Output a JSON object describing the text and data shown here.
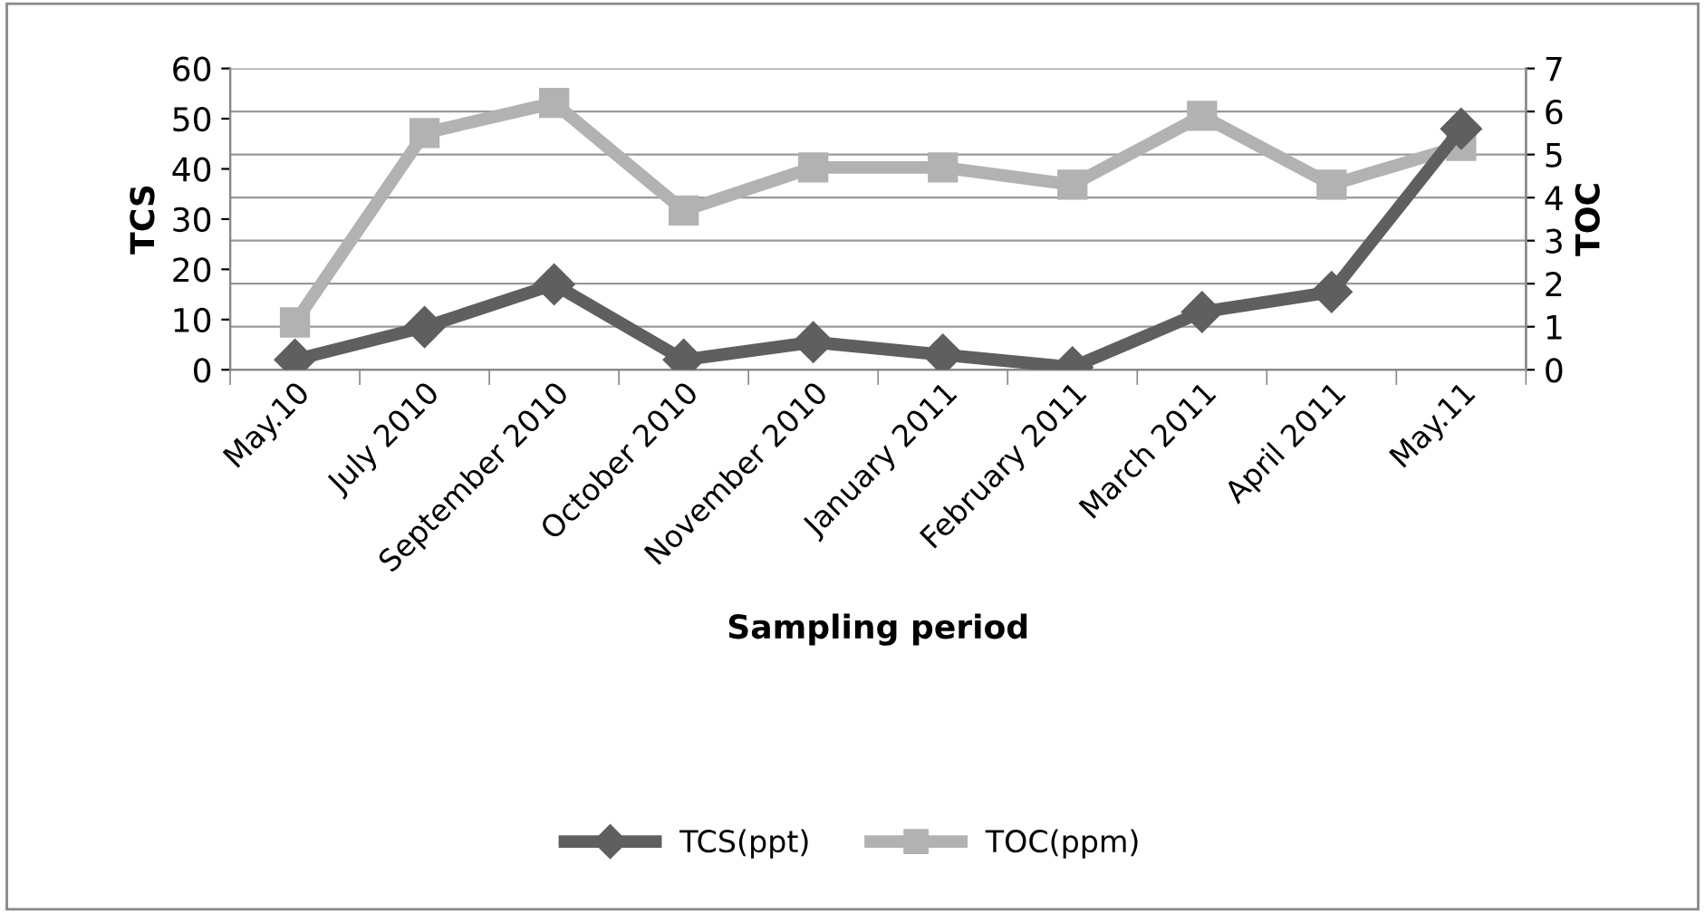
{
  "chart_data": {
    "type": "line",
    "xlabel": "Sampling period",
    "ylabel": "TCS",
    "y2label": "TOC",
    "categories": [
      "May.10",
      "July 2010",
      "September 2010",
      "October 2010",
      "November 2010",
      "January 2011",
      "February 2011",
      "March 2011",
      "April 2011",
      "May.11"
    ],
    "series": [
      {
        "name": "TCS(ppt)",
        "color": "#5f5f5f",
        "marker": "diamond",
        "values": [
          2,
          8.5,
          17,
          2,
          5.5,
          3,
          0.5,
          11.5,
          15.5,
          48
        ]
      },
      {
        "name": "TOC(ppm)",
        "color": "#b2b2b2",
        "marker": "square",
        "axis": "y2",
        "values": [
          1.1,
          5.5,
          6.2,
          3.7,
          4.7,
          4.7,
          4.3,
          5.9,
          4.3,
          5.2
        ]
      }
    ],
    "ylim": [
      0,
      60
    ],
    "yticks": [
      0,
      10,
      20,
      30,
      40,
      50,
      60
    ],
    "y2lim": [
      0,
      7
    ],
    "y2ticks": [
      0,
      1,
      2,
      3,
      4,
      5,
      6,
      7
    ],
    "grid": "y",
    "legend": "bottom"
  }
}
